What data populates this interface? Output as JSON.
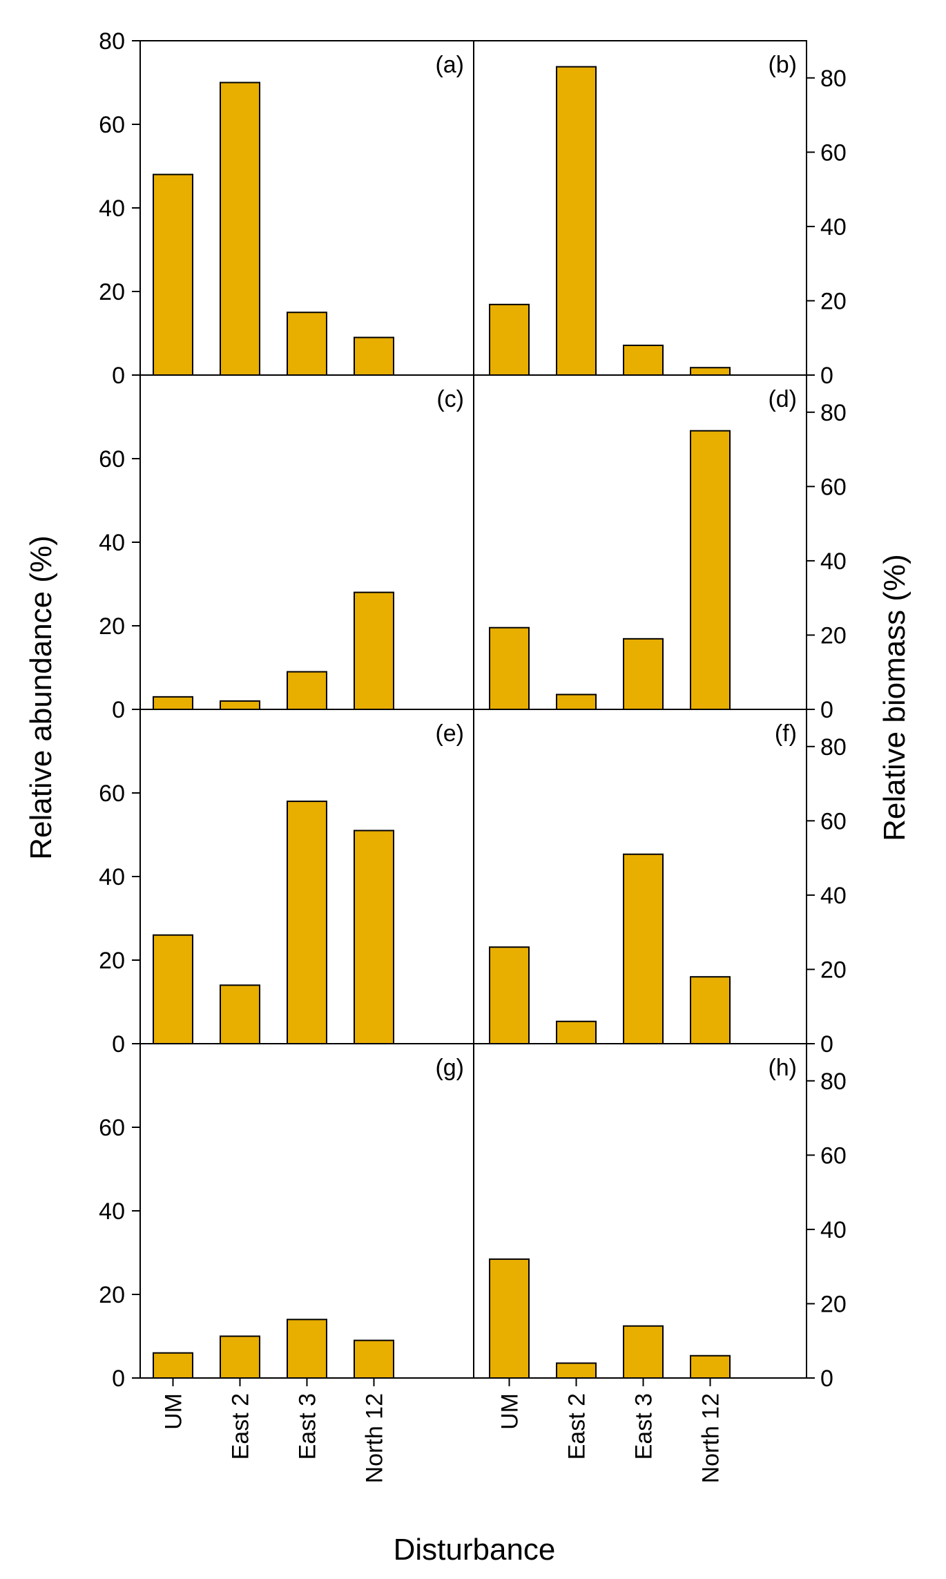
{
  "chart_data": {
    "type": "bar",
    "layout": "4x2 panel grid",
    "xlabel": "Disturbance",
    "ylabel_left": "Relative abundance (%)",
    "ylabel_right": "Relative biomass (%)",
    "categories": [
      "UM",
      "East 2",
      "East 3",
      "North 12"
    ],
    "bar_color": "#E8AE00",
    "left_ylim": [
      0,
      80
    ],
    "left_ticks_top": [
      0,
      20,
      40,
      60,
      80
    ],
    "left_ticks": [
      0,
      20,
      40,
      60
    ],
    "right_ylim": [
      0,
      90
    ],
    "right_ticks": [
      0,
      20,
      40,
      60,
      80
    ],
    "panels": [
      {
        "label": "(a)",
        "side": "left",
        "measure": "Relative abundance (%)",
        "values": [
          48,
          70,
          15,
          9
        ]
      },
      {
        "label": "(b)",
        "side": "right",
        "measure": "Relative biomass (%)",
        "values": [
          19,
          83,
          8,
          2
        ]
      },
      {
        "label": "(c)",
        "side": "left",
        "measure": "Relative abundance (%)",
        "values": [
          3,
          2,
          9,
          28
        ]
      },
      {
        "label": "(d)",
        "side": "right",
        "measure": "Relative biomass (%)",
        "values": [
          22,
          4,
          19,
          75
        ]
      },
      {
        "label": "(e)",
        "side": "left",
        "measure": "Relative abundance (%)",
        "values": [
          26,
          14,
          58,
          51
        ]
      },
      {
        "label": "(f)",
        "side": "right",
        "measure": "Relative biomass (%)",
        "values": [
          26,
          6,
          51,
          18
        ]
      },
      {
        "label": "(g)",
        "side": "left",
        "measure": "Relative abundance (%)",
        "values": [
          6,
          10,
          14,
          9
        ]
      },
      {
        "label": "(h)",
        "side": "right",
        "measure": "Relative biomass (%)",
        "values": [
          32,
          4,
          14,
          6
        ]
      }
    ]
  }
}
